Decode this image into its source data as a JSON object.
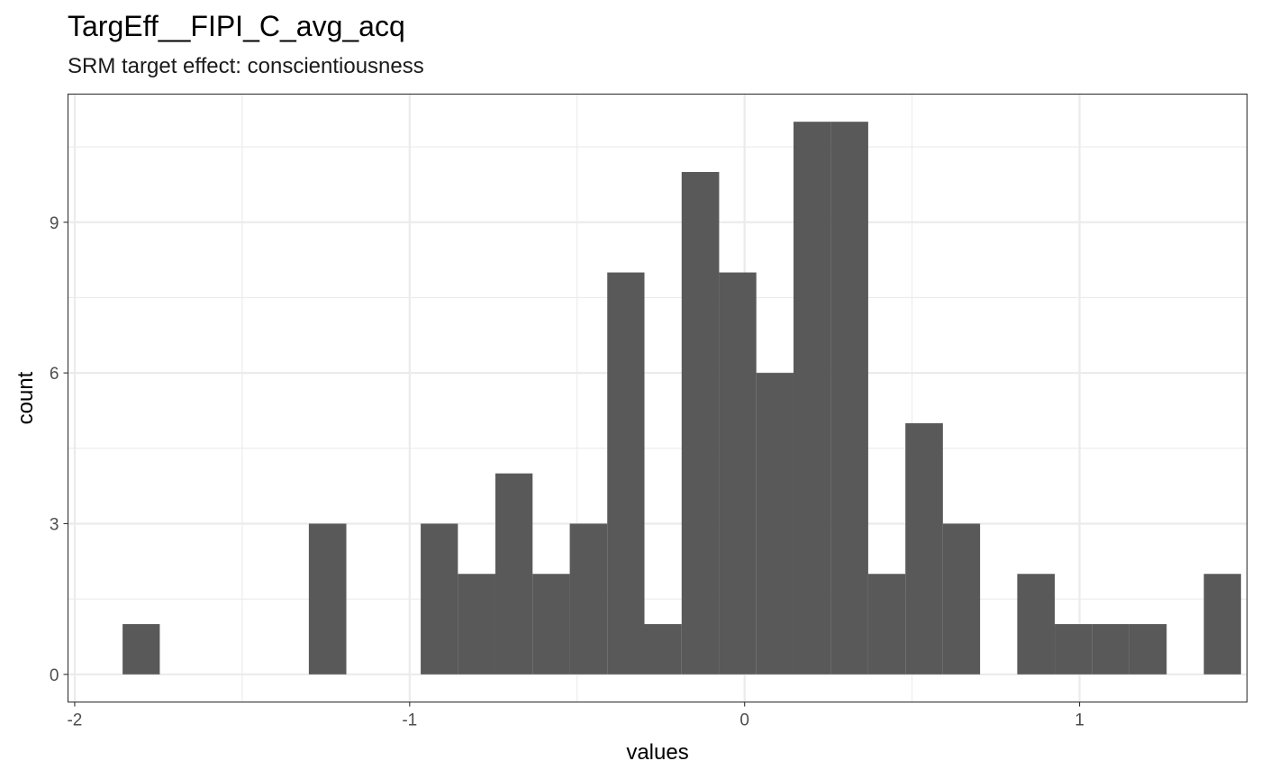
{
  "chart_data": {
    "type": "bar",
    "title": "TargEff__FIPI_C_avg_acq",
    "subtitle": "SRM target effect: conscientiousness",
    "xlabel": "values",
    "ylabel": "count",
    "xlim": [
      -2.02,
      1.5
    ],
    "ylim": [
      -0.55,
      11.55
    ],
    "x_ticks": [
      -2,
      -1,
      0,
      1
    ],
    "x_tick_labels": [
      "-2",
      "-1",
      "0",
      "1"
    ],
    "y_ticks": [
      0,
      3,
      6,
      9
    ],
    "y_tick_labels": [
      "0",
      "3",
      "6",
      "9"
    ],
    "x_minor_ticks": [
      -1.5,
      -0.5,
      0.5,
      1.5
    ],
    "y_minor_ticks": [
      1.5,
      4.5,
      7.5,
      10.5
    ],
    "grid": true,
    "bar_color": "#595959",
    "bins": [
      {
        "start": -1.857,
        "end": -1.746,
        "count": 1
      },
      {
        "start": -1.746,
        "end": -1.635,
        "count": 0
      },
      {
        "start": -1.635,
        "end": -1.523,
        "count": 0
      },
      {
        "start": -1.523,
        "end": -1.412,
        "count": 0
      },
      {
        "start": -1.412,
        "end": -1.301,
        "count": 0
      },
      {
        "start": -1.301,
        "end": -1.189,
        "count": 3
      },
      {
        "start": -1.189,
        "end": -1.078,
        "count": 0
      },
      {
        "start": -1.078,
        "end": -0.967,
        "count": 0
      },
      {
        "start": -0.967,
        "end": -0.856,
        "count": 3
      },
      {
        "start": -0.856,
        "end": -0.744,
        "count": 2
      },
      {
        "start": -0.744,
        "end": -0.633,
        "count": 4
      },
      {
        "start": -0.633,
        "end": -0.522,
        "count": 2
      },
      {
        "start": -0.522,
        "end": -0.41,
        "count": 3
      },
      {
        "start": -0.41,
        "end": -0.299,
        "count": 8
      },
      {
        "start": -0.299,
        "end": -0.188,
        "count": 1
      },
      {
        "start": -0.188,
        "end": -0.076,
        "count": 10
      },
      {
        "start": -0.076,
        "end": 0.035,
        "count": 8
      },
      {
        "start": 0.035,
        "end": 0.146,
        "count": 6
      },
      {
        "start": 0.146,
        "end": 0.258,
        "count": 11
      },
      {
        "start": 0.258,
        "end": 0.369,
        "count": 11
      },
      {
        "start": 0.369,
        "end": 0.48,
        "count": 2
      },
      {
        "start": 0.48,
        "end": 0.592,
        "count": 5
      },
      {
        "start": 0.592,
        "end": 0.703,
        "count": 3
      },
      {
        "start": 0.703,
        "end": 0.814,
        "count": 0
      },
      {
        "start": 0.814,
        "end": 0.926,
        "count": 2
      },
      {
        "start": 0.926,
        "end": 1.037,
        "count": 1
      },
      {
        "start": 1.037,
        "end": 1.148,
        "count": 1
      },
      {
        "start": 1.148,
        "end": 1.26,
        "count": 1
      },
      {
        "start": 1.26,
        "end": 1.371,
        "count": 0
      },
      {
        "start": 1.371,
        "end": 1.482,
        "count": 2
      }
    ]
  }
}
